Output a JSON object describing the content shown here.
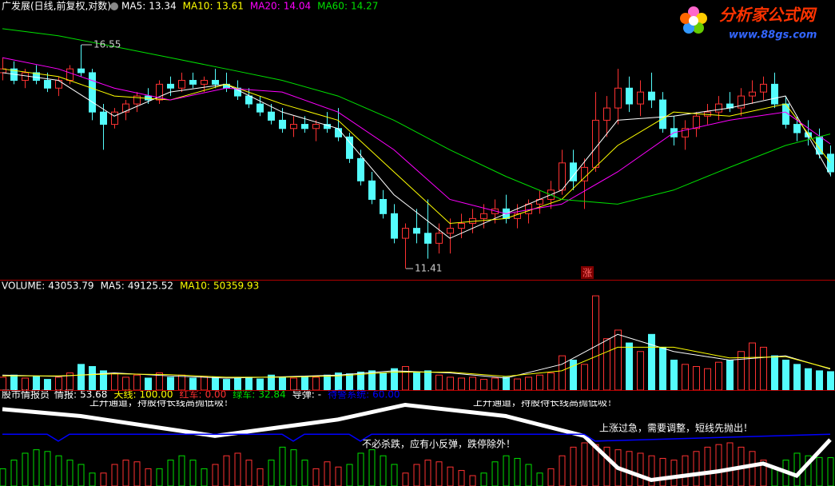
{
  "logo": {
    "title": "分析家公式网",
    "url": "www.88gs.com"
  },
  "chart_data": [
    {
      "type": "candlestick",
      "title": "广发展(日线,前复权,对数)",
      "log_scale": true,
      "ylim": [
        11.2,
        17.5
      ],
      "up_color": "#ff3232",
      "down_color": "#54fcfc",
      "open": [
        15.8,
        15.9,
        15.6,
        15.8,
        15.6,
        15.4,
        15.6,
        15.9,
        15.8,
        14.8,
        14.5,
        14.8,
        15.0,
        15.2,
        15.1,
        15.5,
        15.4,
        15.6,
        15.5,
        15.6,
        15.5,
        15.4,
        15.2,
        15.0,
        14.8,
        14.6,
        14.4,
        14.5,
        14.4,
        14.5,
        14.4,
        14.2,
        13.7,
        13.2,
        12.8,
        12.5,
        12.0,
        12.2,
        12.1,
        11.9,
        12.1,
        12.2,
        12.3,
        12.4,
        12.5,
        12.6,
        12.4,
        12.5,
        12.7,
        12.8,
        13.0,
        13.6,
        13.2,
        13.5,
        14.6,
        14.9,
        15.4,
        15.0,
        15.3,
        15.1,
        14.4,
        14.2,
        14.4,
        14.7,
        14.8,
        15.0,
        14.9,
        15.2,
        15.3,
        15.5,
        15.0,
        14.5,
        14.3,
        14.2,
        13.8
      ],
      "high": [
        16.2,
        16.1,
        15.9,
        16.0,
        15.8,
        15.7,
        16.0,
        16.55,
        15.9,
        15.0,
        14.9,
        15.1,
        15.3,
        15.4,
        15.6,
        15.7,
        15.8,
        15.8,
        15.7,
        15.9,
        15.8,
        15.6,
        15.4,
        15.2,
        15.0,
        14.9,
        14.7,
        14.7,
        14.6,
        14.8,
        14.9,
        14.3,
        13.9,
        13.4,
        13.0,
        12.7,
        12.3,
        12.6,
        12.8,
        12.3,
        12.4,
        12.5,
        12.6,
        12.7,
        12.8,
        12.9,
        12.7,
        12.8,
        13.0,
        13.2,
        13.9,
        13.9,
        13.7,
        15.3,
        15.2,
        15.9,
        15.7,
        15.6,
        15.8,
        15.3,
        14.7,
        14.6,
        14.8,
        15.0,
        15.2,
        15.3,
        15.4,
        15.6,
        15.7,
        15.8,
        15.2,
        14.7,
        14.6,
        14.4,
        14.0
      ],
      "low": [
        15.6,
        15.5,
        15.4,
        15.5,
        15.3,
        15.2,
        15.5,
        15.7,
        14.6,
        13.9,
        14.4,
        14.6,
        14.8,
        15.0,
        15.0,
        15.2,
        15.3,
        15.4,
        15.3,
        15.4,
        15.3,
        15.1,
        14.9,
        14.7,
        14.5,
        14.3,
        14.2,
        14.3,
        14.1,
        14.3,
        14.1,
        13.6,
        13.1,
        12.7,
        12.4,
        11.9,
        11.41,
        11.9,
        11.6,
        11.7,
        11.7,
        12.0,
        12.1,
        12.2,
        12.3,
        12.3,
        12.2,
        12.3,
        12.5,
        12.6,
        12.9,
        13.0,
        12.6,
        13.4,
        14.2,
        14.5,
        14.8,
        14.7,
        14.9,
        14.3,
        14.0,
        13.9,
        14.2,
        14.5,
        14.6,
        14.8,
        14.7,
        15.0,
        15.1,
        14.9,
        14.4,
        14.1,
        14.0,
        13.7,
        13.3
      ],
      "close": [
        15.9,
        15.6,
        15.8,
        15.6,
        15.4,
        15.6,
        15.9,
        15.8,
        14.8,
        14.5,
        14.8,
        15.0,
        15.2,
        15.1,
        15.5,
        15.4,
        15.6,
        15.5,
        15.6,
        15.5,
        15.4,
        15.2,
        15.0,
        14.8,
        14.6,
        14.4,
        14.5,
        14.4,
        14.5,
        14.4,
        14.2,
        13.7,
        13.2,
        12.8,
        12.5,
        12.0,
        12.2,
        12.1,
        11.9,
        12.1,
        12.2,
        12.3,
        12.4,
        12.5,
        12.6,
        12.4,
        12.5,
        12.7,
        12.8,
        13.0,
        13.6,
        13.2,
        13.5,
        14.6,
        14.9,
        15.4,
        15.0,
        15.3,
        15.1,
        14.4,
        14.2,
        14.4,
        14.7,
        14.8,
        15.0,
        14.9,
        15.2,
        15.3,
        15.5,
        15.0,
        14.5,
        14.3,
        14.2,
        13.8,
        13.4
      ],
      "series": [
        {
          "name": "MA5",
          "color": "#ffffff",
          "x": [
            0,
            5,
            10,
            15,
            20,
            25,
            30,
            35,
            40,
            45,
            50,
            55,
            60,
            65,
            70,
            74
          ],
          "values": [
            15.8,
            15.6,
            14.7,
            15.3,
            15.5,
            14.8,
            14.4,
            12.9,
            12.0,
            12.5,
            13.0,
            14.6,
            14.7,
            14.9,
            15.2,
            13.34
          ]
        },
        {
          "name": "MA10",
          "color": "#ffff00",
          "x": [
            0,
            5,
            10,
            15,
            20,
            25,
            30,
            35,
            40,
            45,
            50,
            55,
            60,
            65,
            70,
            74
          ],
          "values": [
            15.9,
            15.7,
            15.2,
            15.1,
            15.5,
            15.0,
            14.6,
            13.4,
            12.3,
            12.4,
            12.8,
            14.0,
            14.8,
            14.7,
            15.0,
            13.61
          ]
        },
        {
          "name": "MA20",
          "color": "#ff00ff",
          "x": [
            0,
            5,
            10,
            15,
            20,
            25,
            30,
            35,
            40,
            45,
            50,
            55,
            60,
            65,
            70,
            74
          ],
          "values": [
            16.2,
            15.9,
            15.4,
            15.1,
            15.4,
            15.3,
            14.8,
            13.9,
            12.8,
            12.5,
            12.7,
            13.4,
            14.3,
            14.6,
            14.8,
            14.04
          ]
        },
        {
          "name": "MA60",
          "color": "#00e000",
          "x": [
            0,
            5,
            10,
            15,
            20,
            25,
            30,
            35,
            40,
            45,
            50,
            55,
            60,
            65,
            70,
            74
          ],
          "values": [
            17.0,
            16.8,
            16.5,
            16.2,
            15.9,
            15.6,
            15.2,
            14.6,
            13.9,
            13.3,
            12.8,
            12.7,
            13.0,
            13.5,
            14.0,
            14.27
          ]
        }
      ],
      "markers": [
        "涨"
      ]
    },
    {
      "type": "volume",
      "title": "VOLUME",
      "ylim": [
        0,
        250000
      ],
      "values": [
        30000,
        35000,
        28000,
        32000,
        25000,
        30000,
        40000,
        60000,
        55000,
        45000,
        38000,
        30000,
        35000,
        28000,
        40000,
        30000,
        35000,
        28000,
        32000,
        30000,
        25000,
        28000,
        30000,
        26000,
        35000,
        30000,
        28000,
        32000,
        30000,
        35000,
        40000,
        38000,
        42000,
        45000,
        40000,
        50000,
        55000,
        40000,
        45000,
        35000,
        30000,
        28000,
        30000,
        25000,
        28000,
        30000,
        26000,
        30000,
        35000,
        40000,
        80000,
        70000,
        60000,
        220000,
        120000,
        140000,
        110000,
        90000,
        130000,
        100000,
        70000,
        60000,
        55000,
        50000,
        65000,
        70000,
        90000,
        110000,
        100000,
        80000,
        70000,
        60000,
        50000,
        45000,
        43053.79
      ],
      "series": [
        {
          "name": "MA5",
          "color": "#ffffff",
          "x": [
            0,
            5,
            10,
            15,
            20,
            25,
            30,
            35,
            40,
            45,
            50,
            55,
            60,
            65,
            70,
            74
          ],
          "values": [
            35000,
            32000,
            40000,
            33000,
            28000,
            31000,
            35000,
            45000,
            40000,
            28000,
            60000,
            130000,
            90000,
            70000,
            80000,
            49125.52
          ]
        },
        {
          "name": "MA10",
          "color": "#ffff00",
          "x": [
            0,
            5,
            10,
            15,
            20,
            25,
            30,
            35,
            40,
            45,
            50,
            55,
            60,
            65,
            70,
            74
          ],
          "values": [
            33000,
            33000,
            38000,
            36000,
            30000,
            30000,
            33000,
            42000,
            42000,
            32000,
            45000,
            100000,
            100000,
            75000,
            78000,
            50359.93
          ]
        }
      ]
    },
    {
      "type": "indicator",
      "title": "股市情报员",
      "ylim": [
        0,
        100
      ],
      "readouts": [
        {
          "name": "情报",
          "value": 53.68,
          "color": "#ffffff"
        },
        {
          "name": "天线",
          "value": 100,
          "label": "100.00",
          "color": "#ffff00"
        },
        {
          "name": "红军",
          "value": 0,
          "label": "0.00",
          "color": "#ff3232"
        },
        {
          "name": "绿军",
          "value": 32.84,
          "color": "#00e000"
        },
        {
          "name": "导弹",
          "label": "-",
          "color": "#ffffff"
        },
        {
          "name": "待警系统",
          "value": 60,
          "label": "60.00",
          "color": "#0000ff"
        }
      ],
      "lines": [
        {
          "color": "#ffffff",
          "x": [
            0,
            7,
            19,
            30,
            36,
            45,
            52,
            55,
            58,
            64,
            68,
            71,
            74
          ],
          "values": [
            89,
            81,
            58,
            77,
            94,
            81,
            58,
            21,
            7,
            17,
            26,
            12,
            53.68
          ]
        },
        {
          "color": "#0000ff",
          "x": [
            0,
            4,
            5,
            6,
            25,
            26,
            27,
            31,
            32,
            33,
            52,
            53,
            74
          ],
          "values": [
            60,
            60,
            52,
            60,
            60,
            52,
            60,
            60,
            52,
            60,
            60,
            52,
            60
          ]
        }
      ],
      "bars": [
        {
          "color": "#ff3232",
          "values": [
            0,
            0,
            0,
            0,
            0,
            0,
            0,
            0,
            0,
            15,
            25,
            30,
            28,
            20,
            0,
            0,
            0,
            0,
            0,
            25,
            35,
            38,
            30,
            20,
            0,
            0,
            0,
            0,
            20,
            28,
            22,
            0,
            0,
            0,
            0,
            0,
            15,
            25,
            30,
            28,
            22,
            18,
            12,
            0,
            0,
            0,
            0,
            0,
            0,
            20,
            35,
            45,
            50,
            48,
            45,
            42,
            40,
            38,
            35,
            32,
            30,
            35,
            40,
            45,
            48,
            50,
            45,
            40,
            30,
            0,
            0,
            0,
            0,
            0,
            0
          ]
        },
        {
          "color": "#00e000",
          "values": [
            20,
            30,
            38,
            42,
            40,
            35,
            30,
            25,
            15,
            0,
            0,
            0,
            0,
            0,
            20,
            30,
            35,
            30,
            20,
            0,
            0,
            0,
            0,
            0,
            30,
            45,
            42,
            30,
            0,
            0,
            0,
            25,
            38,
            42,
            35,
            25,
            0,
            0,
            0,
            0,
            0,
            0,
            0,
            15,
            28,
            35,
            32,
            25,
            15,
            0,
            0,
            0,
            0,
            0,
            0,
            0,
            0,
            0,
            0,
            0,
            0,
            0,
            0,
            0,
            0,
            0,
            0,
            0,
            0,
            20,
            30,
            38,
            35,
            33,
            32.84
          ]
        }
      ],
      "annotations": [
        "上升通道，持股待长线高抛低吸！",
        "上升通道，持股待长线高抛低吸！",
        "不必杀跌，应有小反弹，跌停除外！",
        "上涨过急，需要调整，短线先抛出！"
      ]
    }
  ]
}
